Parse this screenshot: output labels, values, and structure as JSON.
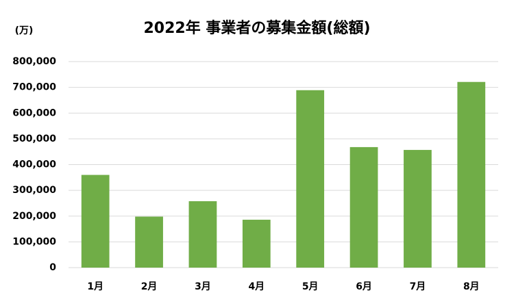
{
  "chart_data": {
    "type": "bar",
    "title": "2022年 事業者の募集金額(総額)",
    "y_label": "(万)",
    "categories": [
      "1月",
      "2月",
      "3月",
      "4月",
      "5月",
      "6月",
      "7月",
      "8月"
    ],
    "values": [
      360000,
      198000,
      258000,
      186000,
      689000,
      468000,
      457000,
      721000
    ],
    "color": "#70ad47",
    "ylim": [
      0,
      800000
    ],
    "yticks": [
      0,
      {
        "value": 100000,
        "label": "100,000"
      },
      {
        "value": 200000,
        "label": "200,000"
      },
      {
        "value": 300000,
        "label": "300,000"
      },
      {
        "value": 400000,
        "label": "400,000"
      },
      {
        "value": 500000,
        "label": "500,000"
      },
      {
        "value": 600000,
        "label": "600,000"
      },
      {
        "value": 700000,
        "label": "700,000"
      },
      {
        "value": 800000,
        "label": "800,000"
      }
    ],
    "grid": true
  }
}
